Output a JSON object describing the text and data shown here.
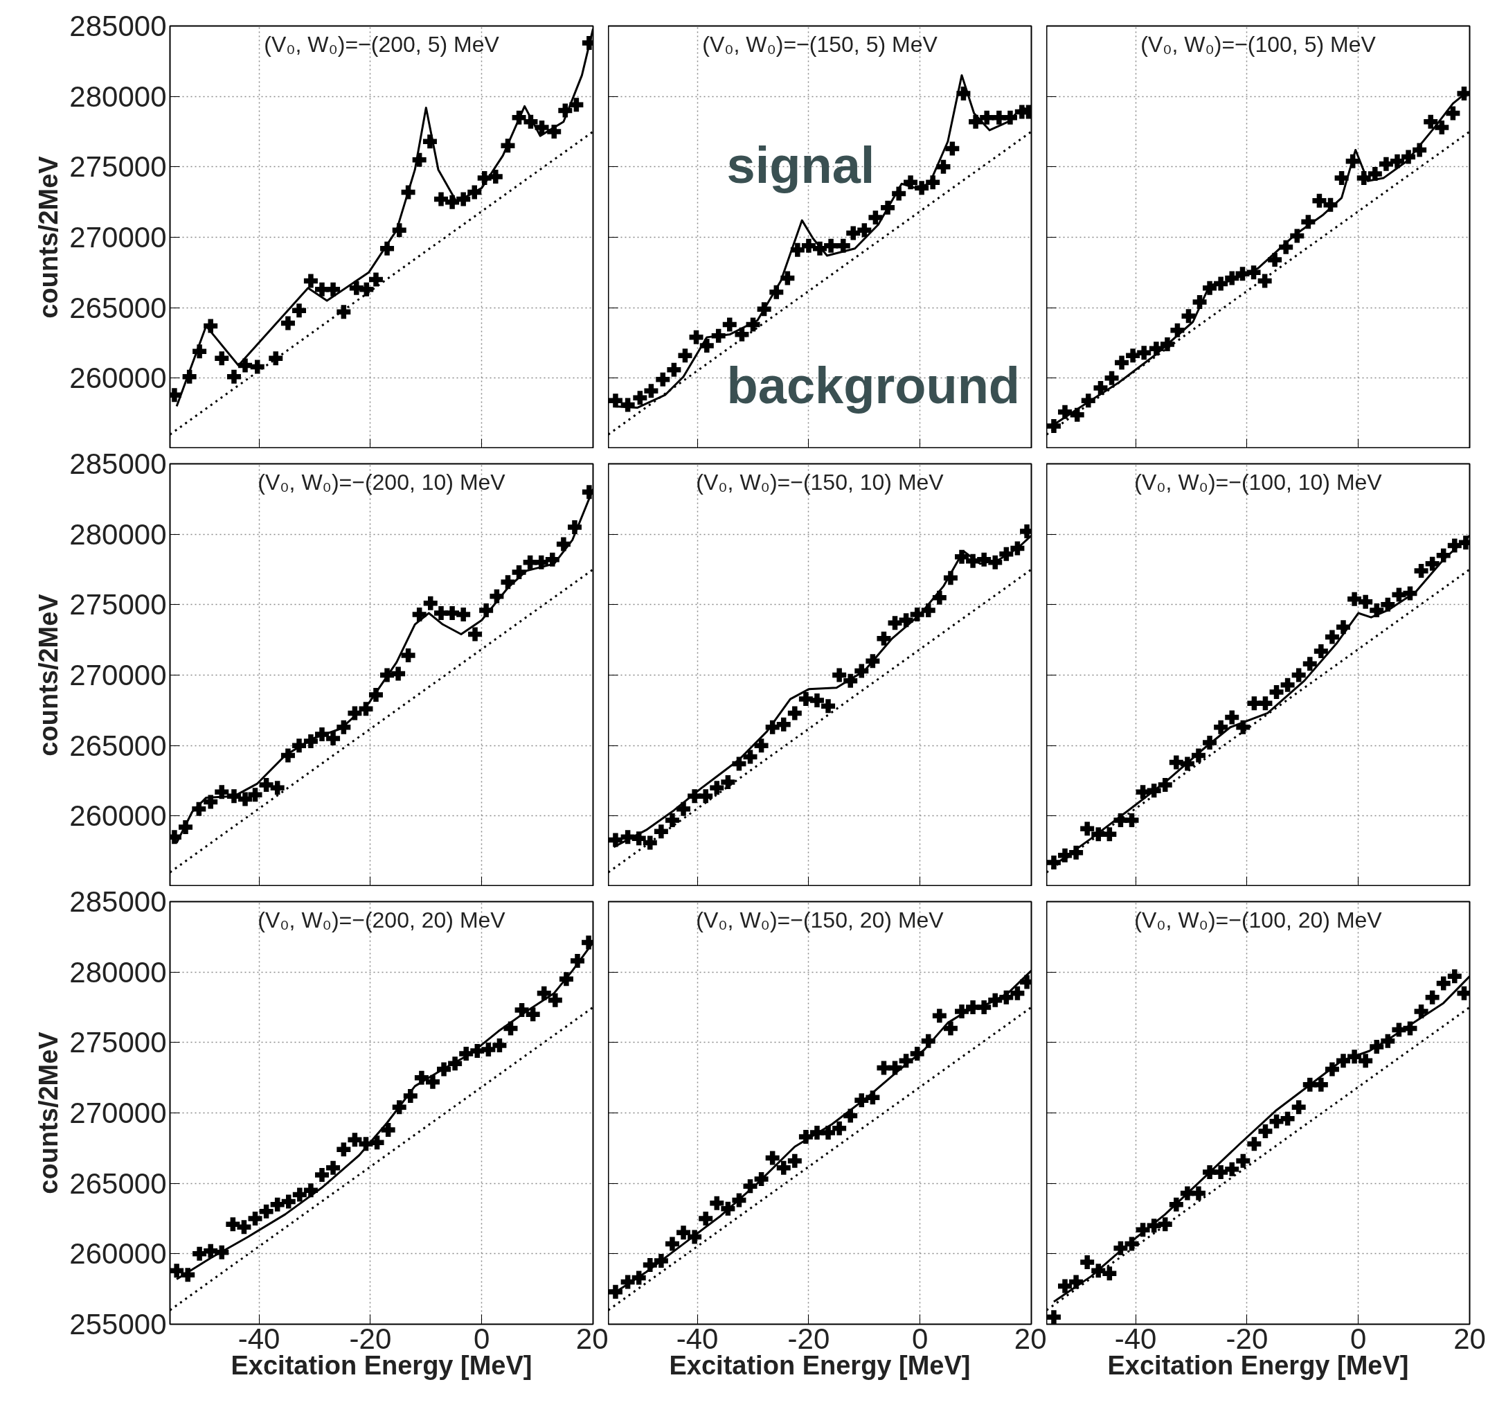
{
  "chart_data": [
    {
      "type": "scatter",
      "title": "(V₀, W₀)=−(200, 5) MeV",
      "ylabel": "counts/2MeV",
      "xlim": [
        -56,
        20
      ],
      "ylim": [
        255000,
        285000
      ],
      "xticks": [
        -40,
        -20,
        0,
        20
      ],
      "yticks": [
        260000,
        265000,
        270000,
        275000,
        280000,
        285000
      ],
      "grid": true,
      "tick_labels": "y",
      "series": [
        {
          "type": "scatter",
          "marker": "cross",
          "color": "#000000",
          "x": [
            -55.2,
            -52.5,
            -50.7,
            -48.7,
            -46.7,
            -44.5,
            -42.5,
            -40.3,
            -37,
            -34.8,
            -32.8,
            -30.7,
            -28.7,
            -26.7,
            -24.8,
            -22.5,
            -20.7,
            -19,
            -17,
            -14.8,
            -13.2,
            -11.2,
            -9.3,
            -7.3,
            -5.3,
            -3.3,
            -1.3,
            0.5,
            2.5,
            4.7,
            6.7,
            8.8,
            10.8,
            13,
            15,
            17,
            19.3
          ],
          "values": [
            258800,
            260100,
            261900,
            263700,
            261400,
            260100,
            260900,
            260800,
            261400,
            263900,
            264800,
            266900,
            266300,
            266300,
            264700,
            266400,
            266300,
            267000,
            269200,
            270500,
            273200,
            275500,
            276800,
            272700,
            272500,
            272700,
            273200,
            274200,
            274300,
            276500,
            278500,
            278200,
            277800,
            277500,
            279000,
            279400,
            283800
          ]
        },
        {
          "type": "line",
          "color": "#000000",
          "x": [
            -54.8,
            -49.5,
            -43.7,
            -31.2,
            -27.8,
            -20.3,
            -15.3,
            -12,
            -10,
            -7.8,
            -4.5,
            0,
            3.8,
            7.7,
            10.5,
            14.7,
            18,
            20
          ],
          "values": [
            258000,
            263700,
            260900,
            266400,
            265500,
            267500,
            270500,
            274800,
            279200,
            274800,
            272500,
            273500,
            275800,
            279300,
            277200,
            278200,
            281500,
            284800
          ]
        },
        {
          "type": "line",
          "line_style": "dotted",
          "color": "#000000",
          "x": [
            -56,
            20
          ],
          "values": [
            256000,
            277500
          ]
        }
      ]
    },
    {
      "type": "scatter",
      "title": "(V₀, W₀)=−(150, 5) MeV",
      "xlim": [
        -56,
        20
      ],
      "ylim": [
        255000,
        285000
      ],
      "xticks": [
        -40,
        -20,
        0,
        20
      ],
      "yticks": [
        260000,
        265000,
        270000,
        275000,
        280000,
        285000
      ],
      "grid": true,
      "tick_labels": false,
      "annotations": [
        "signal",
        "background"
      ],
      "series": [
        {
          "type": "scatter",
          "marker": "cross",
          "color": "#000000",
          "x": [
            -54.7,
            -52.5,
            -50.3,
            -48.3,
            -46.2,
            -44.2,
            -42.2,
            -40.2,
            -38.3,
            -36.2,
            -34.2,
            -32,
            -30,
            -28,
            -25.8,
            -23.8,
            -22,
            -20,
            -18,
            -16,
            -13.8,
            -12,
            -10,
            -8,
            -5.8,
            -3.8,
            -1.7,
            0.3,
            2.3,
            4.2,
            5.8,
            7.8,
            10,
            12,
            14.2,
            16.2,
            18.3,
            19.5
          ],
          "values": [
            258400,
            258100,
            258600,
            259100,
            259900,
            260600,
            261600,
            262900,
            262300,
            263000,
            263800,
            263100,
            263800,
            264900,
            266100,
            267100,
            269100,
            269400,
            269200,
            269400,
            269400,
            270300,
            270500,
            271400,
            272100,
            273100,
            273900,
            273500,
            273900,
            275000,
            276300,
            280200,
            278200,
            278500,
            278500,
            278500,
            278900,
            278900
          ]
        },
        {
          "type": "line",
          "color": "#000000",
          "x": [
            -55,
            -50.8,
            -45.8,
            -42.5,
            -38.3,
            -34.2,
            -29.2,
            -25,
            -21.2,
            -19.2,
            -16.7,
            -11.7,
            -7.5,
            -3.3,
            -0.8,
            1.7,
            5,
            7.5,
            9.7,
            12.5,
            15.8,
            18.3,
            20
          ],
          "values": [
            258000,
            257900,
            258800,
            260100,
            262900,
            263100,
            264100,
            266900,
            271200,
            269900,
            268700,
            269200,
            270900,
            273800,
            273500,
            273800,
            276800,
            281500,
            278800,
            277600,
            278200,
            279200,
            279000
          ]
        },
        {
          "type": "line",
          "line_style": "dotted",
          "color": "#000000",
          "x": [
            -56,
            20
          ],
          "values": [
            256000,
            277500
          ]
        }
      ]
    },
    {
      "type": "scatter",
      "title": "(V₀, W₀)=−(100, 5) MeV",
      "xlim": [
        -56,
        20
      ],
      "ylim": [
        255000,
        285000
      ],
      "xticks": [
        -40,
        -20,
        0,
        20
      ],
      "yticks": [
        260000,
        265000,
        270000,
        275000,
        280000,
        285000
      ],
      "grid": true,
      "tick_labels": false,
      "series": [
        {
          "type": "scatter",
          "marker": "cross",
          "color": "#000000",
          "x": [
            -54.7,
            -52.7,
            -50.5,
            -48.5,
            -46.3,
            -44.3,
            -42.5,
            -40.5,
            -38.5,
            -36.3,
            -34.3,
            -32.5,
            -30.5,
            -28.5,
            -26.7,
            -24.7,
            -22.7,
            -20.8,
            -18.8,
            -16.8,
            -15,
            -13,
            -11,
            -9,
            -7,
            -5,
            -3,
            -1,
            1,
            3,
            5,
            7,
            9,
            11,
            13,
            15,
            17,
            19
          ],
          "values": [
            256600,
            257600,
            257400,
            258400,
            259300,
            260000,
            261100,
            261600,
            261800,
            262100,
            262400,
            263400,
            264400,
            265400,
            266400,
            266700,
            267100,
            267400,
            267500,
            266900,
            268400,
            269300,
            270100,
            271100,
            272600,
            272300,
            274200,
            275400,
            274200,
            274500,
            275200,
            275400,
            275700,
            276200,
            278200,
            277800,
            278800,
            280200
          ]
        },
        {
          "type": "line",
          "color": "#000000",
          "x": [
            -54.7,
            -49.7,
            -43,
            -36.3,
            -29.7,
            -26.7,
            -23,
            -18,
            -11.3,
            -6.3,
            -3,
            -0.5,
            1.7,
            4.5,
            8.7,
            13.7,
            17,
            19.5
          ],
          "values": [
            256700,
            258000,
            259700,
            261700,
            264000,
            266600,
            266900,
            267800,
            270200,
            271600,
            272800,
            276200,
            274000,
            274200,
            275400,
            277800,
            279500,
            280300
          ]
        },
        {
          "type": "line",
          "line_style": "dotted",
          "color": "#000000",
          "x": [
            -56,
            20
          ],
          "values": [
            256000,
            277500
          ]
        }
      ]
    },
    {
      "type": "scatter",
      "title": "(V₀, W₀)=−(200, 10) MeV",
      "ylabel": "counts/2MeV",
      "xlim": [
        -56,
        20
      ],
      "ylim": [
        255000,
        285000
      ],
      "xticks": [
        -40,
        -20,
        0,
        20
      ],
      "yticks": [
        260000,
        265000,
        270000,
        275000,
        280000,
        285000
      ],
      "grid": true,
      "tick_labels": "y",
      "series": [
        {
          "type": "scatter",
          "marker": "cross",
          "color": "#000000",
          "x": [
            -55.2,
            -53.2,
            -50.8,
            -48.7,
            -46.7,
            -44.5,
            -42.5,
            -40.7,
            -38.7,
            -36.7,
            -34.8,
            -32.8,
            -30.7,
            -28.7,
            -26.7,
            -24.8,
            -22.8,
            -20.8,
            -19,
            -17,
            -15,
            -13.2,
            -11.2,
            -9.2,
            -7.3,
            -5.3,
            -3.3,
            -1.2,
            0.8,
            2.7,
            4.7,
            6.7,
            8.7,
            10.7,
            12.7,
            14.7,
            16.7,
            19.3
          ],
          "values": [
            258500,
            259200,
            260500,
            261000,
            261700,
            261400,
            261200,
            261500,
            262200,
            262000,
            264300,
            265000,
            265300,
            265800,
            265500,
            266300,
            267300,
            267600,
            268600,
            270000,
            270100,
            271400,
            274300,
            275100,
            274400,
            274400,
            274300,
            272900,
            274600,
            275600,
            276600,
            277300,
            278000,
            278000,
            278200,
            279300,
            280500,
            283000
          ]
        },
        {
          "type": "line",
          "color": "#000000",
          "x": [
            -54.8,
            -52,
            -49.5,
            -44.5,
            -40.3,
            -35.3,
            -30.3,
            -25.3,
            -20.3,
            -15.3,
            -12,
            -9.5,
            -7,
            -3.7,
            0,
            4.7,
            8,
            13,
            16.3,
            20
          ],
          "values": [
            258100,
            260300,
            261300,
            261400,
            262300,
            264300,
            265500,
            266200,
            268000,
            270900,
            273600,
            274400,
            273600,
            272900,
            273900,
            276200,
            277400,
            277900,
            279600,
            283200
          ]
        },
        {
          "type": "line",
          "line_style": "dotted",
          "color": "#000000",
          "x": [
            -56,
            20
          ],
          "values": [
            256000,
            277500
          ]
        }
      ]
    },
    {
      "type": "scatter",
      "title": "(V₀, W₀)=−(150, 10) MeV",
      "xlim": [
        -56,
        20
      ],
      "ylim": [
        255000,
        285000
      ],
      "xticks": [
        -40,
        -20,
        0,
        20
      ],
      "yticks": [
        260000,
        265000,
        270000,
        275000,
        280000,
        285000
      ],
      "grid": true,
      "tick_labels": false,
      "series": [
        {
          "type": "scatter",
          "marker": "cross",
          "color": "#000000",
          "x": [
            -54.7,
            -52.5,
            -50.5,
            -48.5,
            -46.5,
            -44.5,
            -42.5,
            -40.5,
            -38.5,
            -36.5,
            -34.5,
            -32.5,
            -30.5,
            -28.5,
            -26.5,
            -24.5,
            -22.5,
            -20.5,
            -18.5,
            -16.5,
            -14.5,
            -12.5,
            -10.5,
            -8.5,
            -6.5,
            -4.5,
            -2.5,
            -0.5,
            1.5,
            3.5,
            5.5,
            7.5,
            9.5,
            11.5,
            13.5,
            15.5,
            17.5,
            19.2
          ],
          "values": [
            258300,
            258500,
            258400,
            258100,
            258900,
            259700,
            260500,
            261400,
            261400,
            262000,
            262400,
            263700,
            264200,
            265000,
            266300,
            266500,
            267300,
            268300,
            268200,
            267800,
            270000,
            269600,
            270300,
            271000,
            272600,
            273700,
            273900,
            274300,
            274600,
            275500,
            276900,
            278400,
            278100,
            278200,
            278000,
            278600,
            279000,
            280200
          ]
        },
        {
          "type": "line",
          "color": "#000000",
          "x": [
            -55,
            -49.2,
            -44.2,
            -39.2,
            -32.5,
            -27.5,
            -23.3,
            -20,
            -15,
            -10,
            -5,
            0,
            4.2,
            7.8,
            10.8,
            14.2,
            17.5,
            20
          ],
          "values": [
            257800,
            259000,
            260400,
            262000,
            264000,
            266000,
            268300,
            269000,
            269100,
            270300,
            272600,
            274300,
            276300,
            278800,
            277900,
            278200,
            279000,
            279900
          ]
        },
        {
          "type": "line",
          "line_style": "dotted",
          "color": "#000000",
          "x": [
            -56,
            20
          ],
          "values": [
            256000,
            277500
          ]
        }
      ]
    },
    {
      "type": "scatter",
      "title": "(V₀, W₀)=−(100, 10) MeV",
      "xlim": [
        -56,
        20
      ],
      "ylim": [
        255000,
        285000
      ],
      "xticks": [
        -40,
        -20,
        0,
        20
      ],
      "yticks": [
        260000,
        265000,
        270000,
        275000,
        280000,
        285000
      ],
      "grid": true,
      "tick_labels": false,
      "series": [
        {
          "type": "scatter",
          "marker": "cross",
          "color": "#000000",
          "x": [
            -54.7,
            -52.7,
            -50.7,
            -48.7,
            -46.7,
            -44.7,
            -42.7,
            -40.7,
            -38.7,
            -36.7,
            -34.7,
            -32.7,
            -30.7,
            -28.7,
            -26.7,
            -24.7,
            -22.7,
            -20.7,
            -18.7,
            -16.7,
            -14.7,
            -12.7,
            -10.7,
            -8.7,
            -6.7,
            -4.7,
            -2.7,
            -0.7,
            1.3,
            3.3,
            5.3,
            7.3,
            9.3,
            11.3,
            13.3,
            15.3,
            17.3,
            19.3
          ],
          "values": [
            256700,
            257200,
            257400,
            259100,
            258700,
            258700,
            259700,
            259700,
            261700,
            261800,
            262200,
            263800,
            263700,
            264300,
            265200,
            266300,
            267000,
            266300,
            268000,
            268000,
            268800,
            269300,
            270000,
            270800,
            271700,
            272700,
            273400,
            275400,
            275200,
            274600,
            275000,
            275700,
            275800,
            277400,
            277900,
            278500,
            279200,
            279400
          ]
        },
        {
          "type": "line",
          "color": "#000000",
          "x": [
            -54.7,
            -48,
            -41.3,
            -34.7,
            -28,
            -23,
            -16.3,
            -9.7,
            -3.8,
            0,
            2.3,
            5.3,
            10.3,
            15.3,
            20
          ],
          "values": [
            256500,
            258400,
            260400,
            262400,
            264700,
            266300,
            267300,
            269600,
            272300,
            274400,
            274100,
            274600,
            275900,
            278200,
            279900
          ]
        },
        {
          "type": "line",
          "line_style": "dotted",
          "color": "#000000",
          "x": [
            -56,
            20
          ],
          "values": [
            256000,
            277500
          ]
        }
      ]
    },
    {
      "type": "scatter",
      "title": "(V₀, W₀)=−(200, 20) MeV",
      "xlabel": "Excitation Energy [MeV]",
      "ylabel": "counts/2MeV",
      "xlim": [
        -56,
        20
      ],
      "ylim": [
        255000,
        285000
      ],
      "xticks": [
        -40,
        -20,
        0,
        20
      ],
      "yticks": [
        255000,
        260000,
        265000,
        270000,
        275000,
        280000,
        285000
      ],
      "grid": true,
      "series": [
        {
          "type": "scatter",
          "marker": "cross",
          "color": "#000000",
          "x": [
            -54.8,
            -52.8,
            -50.7,
            -48.7,
            -46.7,
            -44.7,
            -42.7,
            -40.7,
            -38.7,
            -36.7,
            -34.7,
            -32.7,
            -30.7,
            -28.7,
            -26.7,
            -24.8,
            -22.8,
            -20.8,
            -18.8,
            -16.8,
            -14.8,
            -12.8,
            -10.8,
            -8.8,
            -6.8,
            -4.8,
            -2.8,
            -0.8,
            1.2,
            3.2,
            5.2,
            7.2,
            9.2,
            11.2,
            13.2,
            15.2,
            17.2,
            19.2
          ],
          "values": [
            258800,
            258500,
            260000,
            260200,
            260100,
            262100,
            261900,
            262500,
            263000,
            263500,
            263700,
            264200,
            264500,
            265600,
            266100,
            267400,
            268100,
            267800,
            267900,
            268800,
            270400,
            271200,
            272500,
            272200,
            273100,
            273500,
            274200,
            274400,
            274500,
            274800,
            276000,
            277300,
            277000,
            278500,
            278000,
            279500,
            280800,
            282100
          ]
        },
        {
          "type": "line",
          "color": "#000000",
          "x": [
            -54.8,
            -48.7,
            -42,
            -35.3,
            -28.7,
            -22,
            -17,
            -12,
            -7,
            -2,
            3,
            8,
            13,
            16.3,
            20
          ],
          "values": [
            258200,
            259700,
            261200,
            262800,
            264700,
            267000,
            269300,
            271900,
            273100,
            274200,
            275800,
            277200,
            278500,
            280100,
            282100
          ]
        },
        {
          "type": "line",
          "line_style": "dotted",
          "color": "#000000",
          "x": [
            -56,
            20
          ],
          "values": [
            256000,
            277500
          ]
        }
      ]
    },
    {
      "type": "scatter",
      "title": "(V₀, W₀)=−(150, 20) MeV",
      "xlabel": "Excitation Energy [MeV]",
      "xlim": [
        -56,
        20
      ],
      "ylim": [
        255000,
        285000
      ],
      "xticks": [
        -40,
        -20,
        0,
        20
      ],
      "yticks": [
        255000,
        260000,
        265000,
        270000,
        275000,
        280000,
        285000
      ],
      "grid": true,
      "tick_labels": "x",
      "series": [
        {
          "type": "scatter",
          "marker": "cross",
          "color": "#000000",
          "x": [
            -54.7,
            -52.5,
            -50.5,
            -48.5,
            -46.5,
            -44.5,
            -42.5,
            -40.5,
            -38.5,
            -36.5,
            -34.5,
            -32.5,
            -30.5,
            -28.5,
            -26.5,
            -24.5,
            -22.5,
            -20.5,
            -18.5,
            -16.5,
            -14.5,
            -12.5,
            -10.5,
            -8.5,
            -6.5,
            -4.5,
            -2.5,
            -0.5,
            1.5,
            3.5,
            5.5,
            7.5,
            9.5,
            11.5,
            13.5,
            15.5,
            17.5,
            19.2
          ],
          "values": [
            257300,
            258000,
            258300,
            259200,
            259500,
            260700,
            261500,
            261200,
            262500,
            263600,
            263200,
            263800,
            264800,
            265300,
            266800,
            266100,
            266600,
            268300,
            268600,
            268600,
            268900,
            269800,
            270900,
            271100,
            273200,
            273200,
            273700,
            274200,
            275100,
            276900,
            276000,
            277200,
            277500,
            277500,
            278000,
            278200,
            278500,
            279300
          ]
        },
        {
          "type": "line",
          "color": "#000000",
          "x": [
            -55,
            -49.2,
            -42.5,
            -35.8,
            -29.2,
            -22.5,
            -15.8,
            -9.2,
            -4.2,
            0.8,
            5,
            8.3,
            12.5,
            15.8,
            20
          ],
          "values": [
            257200,
            258700,
            260700,
            262700,
            265000,
            267600,
            269200,
            271200,
            272900,
            274500,
            276400,
            277200,
            277800,
            278500,
            280100
          ]
        },
        {
          "type": "line",
          "line_style": "dotted",
          "color": "#000000",
          "x": [
            -56,
            20
          ],
          "values": [
            256000,
            277500
          ]
        }
      ]
    },
    {
      "type": "scatter",
      "title": "(V₀, W₀)=−(100, 20) MeV",
      "xlabel": "Excitation Energy [MeV]",
      "xlim": [
        -56,
        20
      ],
      "ylim": [
        255000,
        285000
      ],
      "xticks": [
        -40,
        -20,
        0,
        20
      ],
      "yticks": [
        255000,
        260000,
        265000,
        270000,
        275000,
        280000,
        285000
      ],
      "grid": true,
      "tick_labels": "x",
      "series": [
        {
          "type": "scatter",
          "marker": "cross",
          "color": "#000000",
          "x": [
            -54.7,
            -52.7,
            -50.7,
            -48.7,
            -46.7,
            -44.7,
            -42.7,
            -40.7,
            -38.7,
            -36.7,
            -34.7,
            -32.7,
            -30.7,
            -28.7,
            -26.7,
            -24.7,
            -22.7,
            -20.7,
            -18.7,
            -16.7,
            -14.7,
            -12.7,
            -10.7,
            -8.7,
            -6.7,
            -4.7,
            -2.7,
            -0.7,
            1.3,
            3.3,
            5.3,
            7.3,
            9.3,
            11.3,
            13.3,
            15.3,
            17.3,
            19
          ],
          "values": [
            255500,
            257700,
            258000,
            259400,
            258800,
            258600,
            260400,
            260700,
            261700,
            262000,
            262100,
            263500,
            264300,
            264300,
            265800,
            265800,
            266000,
            266600,
            267800,
            268700,
            269400,
            269600,
            270400,
            272000,
            272000,
            273100,
            273700,
            274000,
            273700,
            274700,
            275100,
            275900,
            276000,
            277200,
            278200,
            279200,
            279700,
            278500
          ]
        },
        {
          "type": "line",
          "color": "#000000",
          "x": [
            -54.7,
            -48,
            -41.3,
            -34.7,
            -28,
            -21.3,
            -14.7,
            -8,
            -3,
            2,
            5.3,
            10.3,
            15.3,
            20
          ],
          "values": [
            256600,
            258400,
            260700,
            262800,
            265300,
            267800,
            270200,
            272200,
            273700,
            274400,
            275200,
            276500,
            277800,
            279700
          ]
        },
        {
          "type": "line",
          "line_style": "dotted",
          "color": "#000000",
          "x": [
            -56,
            20
          ],
          "values": [
            256000,
            277500
          ]
        }
      ]
    }
  ]
}
